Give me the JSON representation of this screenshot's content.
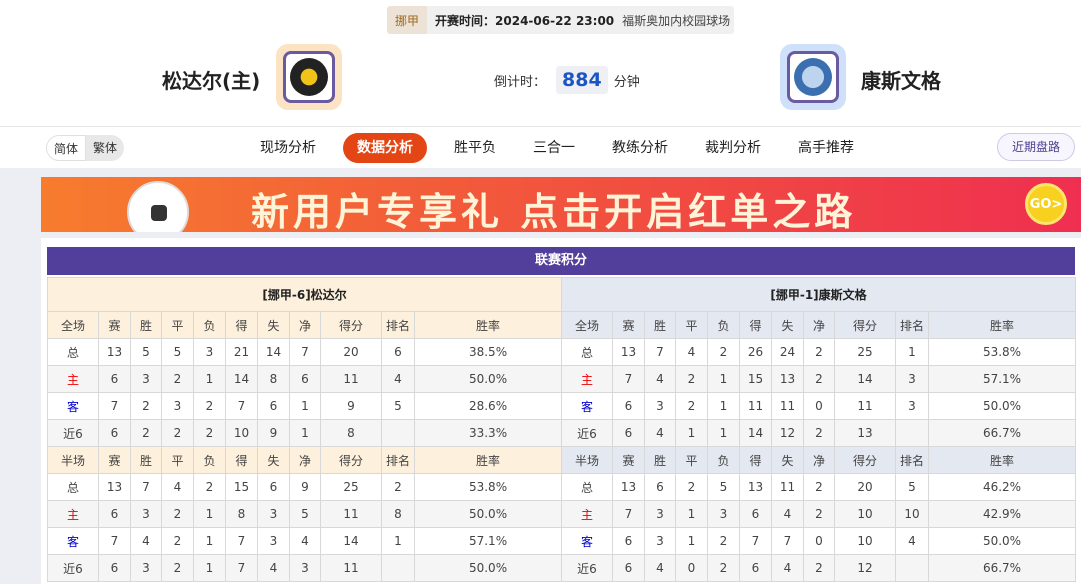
{
  "header": {
    "league": "挪甲",
    "time": "开赛时间：2024-06-22 23:00",
    "venue": "福斯奥加内校园球场",
    "home_team": "松达尔(主)",
    "away_team": "康斯文格",
    "countdown_label": "倒计时：",
    "countdown_value": "884",
    "countdown_unit": "分钟"
  },
  "nav": {
    "lang": [
      "简体",
      "繁体"
    ],
    "tabs": [
      "现场分析",
      "数据分析",
      "胜平负",
      "三合一",
      "教练分析",
      "裁判分析",
      "高手推荐"
    ],
    "active_tab": "数据分析",
    "recent": "近期盘路"
  },
  "banner": {
    "text": "新用户专享礼  点击开启红单之路",
    "go": "GO>"
  },
  "colors": {
    "accent": "#e34515",
    "title_bar": "#523e9b"
  },
  "standings": {
    "title": "联赛积分",
    "columns": [
      "赛",
      "胜",
      "平",
      "负",
      "得",
      "失",
      "净",
      "得分",
      "排名",
      "胜率"
    ],
    "home": {
      "name": "[挪甲-6]松达尔",
      "full": {
        "label": "全场",
        "rows": [
          [
            "总",
            "13",
            "5",
            "5",
            "3",
            "21",
            "14",
            "7",
            "20",
            "6",
            "38.5%"
          ],
          [
            "主",
            "6",
            "3",
            "2",
            "1",
            "14",
            "8",
            "6",
            "11",
            "4",
            "50.0%"
          ],
          [
            "客",
            "7",
            "2",
            "3",
            "2",
            "7",
            "6",
            "1",
            "9",
            "5",
            "28.6%"
          ],
          [
            "近6",
            "6",
            "2",
            "2",
            "2",
            "10",
            "9",
            "1",
            "8",
            "",
            "33.3%"
          ]
        ]
      },
      "half": {
        "label": "半场",
        "rows": [
          [
            "总",
            "13",
            "7",
            "4",
            "2",
            "15",
            "6",
            "9",
            "25",
            "2",
            "53.8%"
          ],
          [
            "主",
            "6",
            "3",
            "2",
            "1",
            "8",
            "3",
            "5",
            "11",
            "8",
            "50.0%"
          ],
          [
            "客",
            "7",
            "4",
            "2",
            "1",
            "7",
            "3",
            "4",
            "14",
            "1",
            "57.1%"
          ],
          [
            "近6",
            "6",
            "3",
            "2",
            "1",
            "7",
            "4",
            "3",
            "11",
            "",
            "50.0%"
          ]
        ]
      }
    },
    "away": {
      "name": "[挪甲-1]康斯文格",
      "full": {
        "label": "全场",
        "rows": [
          [
            "总",
            "13",
            "7",
            "4",
            "2",
            "26",
            "24",
            "2",
            "25",
            "1",
            "53.8%"
          ],
          [
            "主",
            "7",
            "4",
            "2",
            "1",
            "15",
            "13",
            "2",
            "14",
            "3",
            "57.1%"
          ],
          [
            "客",
            "6",
            "3",
            "2",
            "1",
            "11",
            "11",
            "0",
            "11",
            "3",
            "50.0%"
          ],
          [
            "近6",
            "6",
            "4",
            "1",
            "1",
            "14",
            "12",
            "2",
            "13",
            "",
            "66.7%"
          ]
        ]
      },
      "half": {
        "label": "半场",
        "rows": [
          [
            "总",
            "13",
            "6",
            "2",
            "5",
            "13",
            "11",
            "2",
            "20",
            "5",
            "46.2%"
          ],
          [
            "主",
            "7",
            "3",
            "1",
            "3",
            "6",
            "4",
            "2",
            "10",
            "10",
            "42.9%"
          ],
          [
            "客",
            "6",
            "3",
            "1",
            "2",
            "7",
            "7",
            "0",
            "10",
            "4",
            "50.0%"
          ],
          [
            "近6",
            "6",
            "4",
            "0",
            "2",
            "6",
            "4",
            "2",
            "12",
            "",
            "66.7%"
          ]
        ]
      }
    }
  }
}
